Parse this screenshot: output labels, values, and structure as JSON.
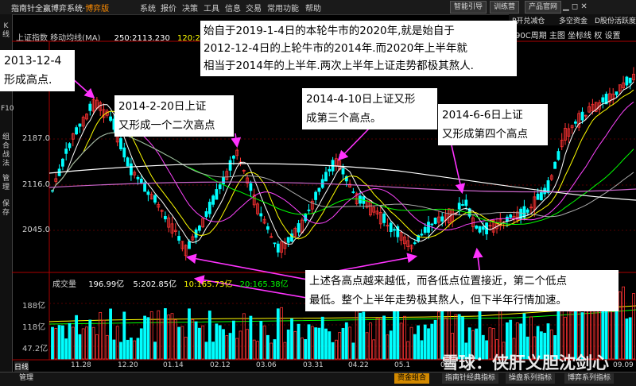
{
  "window": {
    "title_prefix": "指南针全赢博弈系统",
    "title_suffix": "博弈版"
  },
  "menu": [
    "系统",
    "报价",
    "决策",
    "工具",
    "信息",
    "交易",
    "常用功能",
    "帮助"
  ],
  "toolbar_top": [
    "智能引导",
    "训练营",
    "产品官网"
  ],
  "toolbar_row2": [
    "P开兑减仓",
    "多空资金",
    "D股份活跃度"
  ],
  "left_tabs": [
    "K线",
    "F10",
    "组合战法",
    "管理",
    "保存"
  ],
  "chart_header": {
    "index": "上证指数",
    "indicator": "移动均线(MA)",
    "ma250_label": "250:2113.230",
    "ma120_label": "120:2"
  },
  "chart_toolbar": [
    "90C周期",
    "主图",
    "坐标线",
    "权",
    "设置"
  ],
  "price_axis": [
    "2187.0",
    "2116.0",
    "2045.0"
  ],
  "volume_header": {
    "label": "成交量",
    "total": "196.99亿",
    "ma5": "5:202.85亿",
    "ma10": "10:165.73亿",
    "ma20": "20:165.38亿"
  },
  "volume_axis": [
    "188亿",
    "118亿",
    "47.2亿"
  ],
  "x_axis": [
    "11.28",
    "12.20",
    "01.14",
    "02.12",
    "03.06",
    "03.31",
    "04.22",
    "05.1",
    "06.0",
    "09.09"
  ],
  "annotations": {
    "a1": [
      "2013-12-4",
      "形成高点."
    ],
    "a2": [
      "始自于2019-1-4日的本轮牛市的2020年,就是始自于",
      "2012-12-4日的上轮牛市的2014年.而2020年上半年就",
      "相当于2014年的上半年.两次上半年上证走势都极其熬人."
    ],
    "a3": [
      "2014-2-20日上证",
      "又形成一个二次高点"
    ],
    "a4": [
      "2014-4-10日上证又形",
      "成第三个高点。"
    ],
    "a5": [
      "2014-6-6日上证",
      "又形成第四个高点"
    ],
    "a6": [
      "上述各高点越来越低，而各低点位置接近，第二个低点",
      "最低。整个上半年走势极其熬人，但下半年行情加速。"
    ]
  },
  "bottom": {
    "day_line": "日线",
    "manage": "管理",
    "tabs": [
      "资金组合",
      "指南针经典指标",
      "操盘系列指标",
      "博弈系列指标"
    ]
  },
  "watermark": "雪球：侠肝义胆沈剑心",
  "colors": {
    "up": "#ff3333",
    "down": "#00ffff",
    "ma_white": "#ffffff",
    "ma_yellow": "#ffff00",
    "ma_magenta": "#ff44ff",
    "ma_green": "#00ff00",
    "arrow": "#ff33ff"
  }
}
